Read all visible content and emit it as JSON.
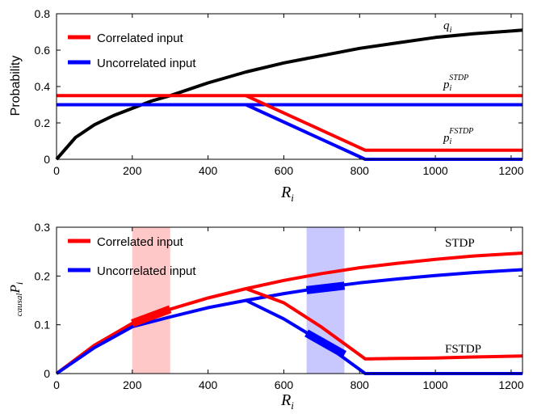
{
  "chart_data": [
    {
      "type": "line",
      "title": "",
      "xlabel": "R",
      "xlabel_sub": "i",
      "ylabel": "Probability",
      "xlim": [
        0,
        1230
      ],
      "ylim": [
        0,
        0.8
      ],
      "xticks": [
        "0",
        "200",
        "400",
        "600",
        "800",
        "1000",
        "1200"
      ],
      "yticks": [
        "0",
        "0.2",
        "0.4",
        "0.6",
        "0.8"
      ],
      "legend": {
        "position": "top-left",
        "entries": [
          {
            "label": "Correlated input",
            "color": "#ff0000"
          },
          {
            "label": "Uncorrelated input",
            "color": "#0000ff"
          }
        ]
      },
      "annotations": [
        {
          "base": "q",
          "sub": "i",
          "sup": ""
        },
        {
          "base": "p",
          "sub": "i",
          "sup": "STDP"
        },
        {
          "base": "p",
          "sub": "i",
          "sup": "FSTDP"
        }
      ],
      "series": [
        {
          "color": "#000000",
          "x": [
            0,
            50,
            100,
            150,
            200,
            250,
            300,
            400,
            500,
            600,
            700,
            800,
            900,
            1000,
            1100,
            1230
          ],
          "y": [
            0,
            0.12,
            0.19,
            0.24,
            0.28,
            0.32,
            0.35,
            0.42,
            0.48,
            0.53,
            0.57,
            0.61,
            0.64,
            0.67,
            0.69,
            0.71
          ]
        },
        {
          "color": "#ff0000",
          "x": [
            0,
            1230
          ],
          "y": [
            0.35,
            0.35
          ]
        },
        {
          "color": "#0000ff",
          "x": [
            0,
            1230
          ],
          "y": [
            0.3,
            0.3
          ]
        },
        {
          "color": "#ff0000",
          "x": [
            500,
            815,
            1230
          ],
          "y": [
            0.35,
            0.05,
            0.05
          ]
        },
        {
          "color": "#0000ff",
          "x": [
            500,
            815,
            1230
          ],
          "y": [
            0.3,
            0,
            0
          ]
        }
      ]
    },
    {
      "type": "line",
      "title": "",
      "xlabel": "R",
      "xlabel_sub": "i",
      "ylabel_base": "P",
      "ylabel_pre_sub": "causal",
      "ylabel_sub": "i",
      "xlim": [
        0,
        1230
      ],
      "ylim": [
        0,
        0.3
      ],
      "xticks": [
        "0",
        "200",
        "400",
        "600",
        "800",
        "1000",
        "1200"
      ],
      "yticks": [
        "0",
        "0.1",
        "0.2",
        "0.3"
      ],
      "legend": {
        "position": "top-left",
        "entries": [
          {
            "label": "Correlated input",
            "color": "#ff0000"
          },
          {
            "label": "Uncorrelated input",
            "color": "#0000ff"
          }
        ]
      },
      "annotations": [
        "STDP",
        "FSTDP"
      ],
      "shaded_regions": [
        {
          "x": [
            200,
            300
          ],
          "color": "#ff9a9a"
        },
        {
          "x": [
            660,
            760
          ],
          "color": "#9a9aff"
        }
      ],
      "series": [
        {
          "color": "#ff0000",
          "x": [
            0,
            100,
            200,
            300,
            400,
            500,
            600,
            700,
            800,
            900,
            1000,
            1100,
            1230
          ],
          "y": [
            0,
            0.058,
            0.103,
            0.132,
            0.155,
            0.174,
            0.191,
            0.205,
            0.217,
            0.226,
            0.234,
            0.241,
            0.247
          ]
        },
        {
          "color": "#0000ff",
          "x": [
            0,
            100,
            200,
            300,
            400,
            500,
            600,
            700,
            800,
            900,
            1000,
            1100,
            1230
          ],
          "y": [
            0,
            0.053,
            0.096,
            0.116,
            0.135,
            0.15,
            0.164,
            0.176,
            0.186,
            0.194,
            0.201,
            0.207,
            0.213
          ]
        },
        {
          "color": "#ff0000",
          "x": [
            500,
            600,
            700,
            815,
            900,
            1000,
            1100,
            1230
          ],
          "y": [
            0.174,
            0.145,
            0.095,
            0.03,
            0.031,
            0.032,
            0.034,
            0.036
          ]
        },
        {
          "color": "#0000ff",
          "x": [
            500,
            600,
            700,
            815,
            1230
          ],
          "y": [
            0.15,
            0.112,
            0.065,
            0,
            0
          ]
        }
      ],
      "highlights": [
        {
          "color": "#ff0000",
          "x": [
            200,
            300
          ],
          "y": [
            0.103,
            0.132
          ]
        },
        {
          "color": "#0000ff",
          "x": [
            660,
            760
          ],
          "y": [
            0.171,
            0.18
          ]
        },
        {
          "color": "#0000ff",
          "x": [
            660,
            760
          ],
          "y": [
            0.083,
            0.039
          ]
        }
      ]
    }
  ]
}
